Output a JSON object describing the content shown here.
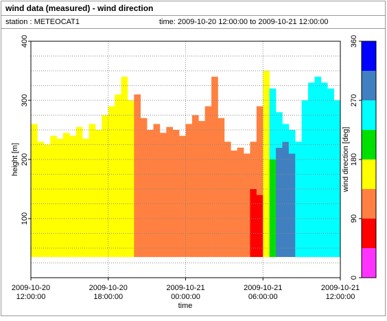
{
  "chart_data": {
    "type": "heatmap",
    "title": "wind data (measured) - wind direction",
    "station": "station : METEOCAT1",
    "period": "time: 2009-10-20 12:00:00 to 2009-10-21 12:00:00",
    "xlabel": "time",
    "ylabel": "height [m]",
    "xlim": [
      "2009-10-20 12:00:00",
      "2009-10-21 12:00:00"
    ],
    "xticks": [
      "2009-10-20 12:00:00",
      "2009-10-20 18:00:00",
      "2009-10-21 00:00:00",
      "2009-10-21 06:00:00",
      "2009-10-21 12:00:00"
    ],
    "ylim": [
      0,
      400
    ],
    "yticks": [
      100,
      200,
      300,
      400
    ],
    "yminorticks": [
      25,
      50,
      75,
      125,
      150,
      175,
      225,
      250,
      275,
      325,
      350,
      375
    ],
    "grid": true,
    "colorbar": {
      "label": "wind direction [deg]",
      "lim": [
        0,
        360
      ],
      "ticks": [
        0,
        90,
        180,
        270,
        360
      ],
      "colors": [
        "#ff33ff",
        "#ff0000",
        "#ff8040",
        "#ffff00",
        "#00e000",
        "#00ffff",
        "#4080c0",
        "#0000ff"
      ]
    },
    "columns": [
      {
        "time": "2009-10-20 12:00:00",
        "segments": [
          [
            35,
            260,
            160
          ]
        ]
      },
      {
        "time": "2009-10-20 12:30:00",
        "segments": [
          [
            35,
            230,
            160
          ]
        ]
      },
      {
        "time": "2009-10-20 13:00:00",
        "segments": [
          [
            35,
            225,
            160
          ]
        ]
      },
      {
        "time": "2009-10-20 13:30:00",
        "segments": [
          [
            35,
            240,
            160
          ]
        ]
      },
      {
        "time": "2009-10-20 14:00:00",
        "segments": [
          [
            35,
            235,
            160
          ]
        ]
      },
      {
        "time": "2009-10-20 14:30:00",
        "segments": [
          [
            35,
            245,
            160
          ]
        ]
      },
      {
        "time": "2009-10-20 15:00:00",
        "segments": [
          [
            35,
            240,
            160
          ]
        ]
      },
      {
        "time": "2009-10-20 15:30:00",
        "segments": [
          [
            35,
            255,
            160
          ]
        ]
      },
      {
        "time": "2009-10-20 16:00:00",
        "segments": [
          [
            35,
            235,
            160
          ]
        ]
      },
      {
        "time": "2009-10-20 16:30:00",
        "segments": [
          [
            35,
            260,
            160
          ]
        ]
      },
      {
        "time": "2009-10-20 17:00:00",
        "segments": [
          [
            35,
            250,
            160
          ]
        ]
      },
      {
        "time": "2009-10-20 17:30:00",
        "segments": [
          [
            35,
            275,
            160
          ]
        ]
      },
      {
        "time": "2009-10-20 18:00:00",
        "segments": [
          [
            35,
            290,
            160
          ]
        ]
      },
      {
        "time": "2009-10-20 18:30:00",
        "segments": [
          [
            35,
            310,
            160
          ]
        ]
      },
      {
        "time": "2009-10-20 19:00:00",
        "segments": [
          [
            35,
            340,
            160
          ]
        ]
      },
      {
        "time": "2009-10-20 19:30:00",
        "segments": [
          [
            35,
            300,
            160
          ]
        ]
      },
      {
        "time": "2009-10-20 20:00:00",
        "segments": [
          [
            35,
            310,
            120
          ]
        ]
      },
      {
        "time": "2009-10-20 20:30:00",
        "segments": [
          [
            35,
            270,
            120
          ]
        ]
      },
      {
        "time": "2009-10-20 21:00:00",
        "segments": [
          [
            35,
            250,
            120
          ]
        ]
      },
      {
        "time": "2009-10-20 21:30:00",
        "segments": [
          [
            35,
            260,
            120
          ]
        ]
      },
      {
        "time": "2009-10-20 22:00:00",
        "segments": [
          [
            35,
            245,
            120
          ]
        ]
      },
      {
        "time": "2009-10-20 22:30:00",
        "segments": [
          [
            35,
            255,
            120
          ]
        ]
      },
      {
        "time": "2009-10-20 23:00:00",
        "segments": [
          [
            35,
            250,
            120
          ]
        ]
      },
      {
        "time": "2009-10-20 23:30:00",
        "segments": [
          [
            35,
            240,
            120
          ]
        ]
      },
      {
        "time": "2009-10-21 00:00:00",
        "segments": [
          [
            35,
            260,
            120
          ]
        ]
      },
      {
        "time": "2009-10-21 00:30:00",
        "segments": [
          [
            35,
            275,
            120
          ]
        ]
      },
      {
        "time": "2009-10-21 01:00:00",
        "segments": [
          [
            35,
            265,
            120
          ]
        ]
      },
      {
        "time": "2009-10-21 01:30:00",
        "segments": [
          [
            35,
            290,
            120
          ]
        ]
      },
      {
        "time": "2009-10-21 02:00:00",
        "segments": [
          [
            35,
            340,
            120
          ]
        ]
      },
      {
        "time": "2009-10-21 02:30:00",
        "segments": [
          [
            35,
            270,
            120
          ]
        ]
      },
      {
        "time": "2009-10-21 03:00:00",
        "segments": [
          [
            35,
            230,
            120
          ]
        ]
      },
      {
        "time": "2009-10-21 03:30:00",
        "segments": [
          [
            35,
            215,
            120
          ]
        ]
      },
      {
        "time": "2009-10-21 04:00:00",
        "segments": [
          [
            35,
            220,
            120
          ]
        ]
      },
      {
        "time": "2009-10-21 04:30:00",
        "segments": [
          [
            35,
            210,
            120
          ]
        ]
      },
      {
        "time": "2009-10-21 05:00:00",
        "segments": [
          [
            35,
            150,
            70
          ],
          [
            150,
            230,
            120
          ]
        ]
      },
      {
        "time": "2009-10-21 05:30:00",
        "segments": [
          [
            35,
            140,
            70
          ],
          [
            140,
            290,
            120
          ]
        ]
      },
      {
        "time": "2009-10-21 06:00:00",
        "segments": [
          [
            35,
            350,
            160
          ]
        ]
      },
      {
        "time": "2009-10-21 06:30:00",
        "segments": [
          [
            35,
            200,
            200
          ],
          [
            200,
            320,
            250
          ]
        ]
      },
      {
        "time": "2009-10-21 07:00:00",
        "segments": [
          [
            35,
            220,
            290
          ],
          [
            220,
            280,
            250
          ]
        ]
      },
      {
        "time": "2009-10-21 07:30:00",
        "segments": [
          [
            35,
            230,
            290
          ],
          [
            230,
            260,
            250
          ]
        ]
      },
      {
        "time": "2009-10-21 08:00:00",
        "segments": [
          [
            35,
            210,
            290
          ],
          [
            210,
            250,
            250
          ]
        ]
      },
      {
        "time": "2009-10-21 08:30:00",
        "segments": [
          [
            35,
            230,
            250
          ]
        ]
      },
      {
        "time": "2009-10-21 09:00:00",
        "segments": [
          [
            35,
            300,
            250
          ]
        ]
      },
      {
        "time": "2009-10-21 09:30:00",
        "segments": [
          [
            35,
            330,
            250
          ]
        ]
      },
      {
        "time": "2009-10-21 10:00:00",
        "segments": [
          [
            35,
            340,
            250
          ]
        ]
      },
      {
        "time": "2009-10-21 10:30:00",
        "segments": [
          [
            35,
            330,
            250
          ]
        ]
      },
      {
        "time": "2009-10-21 11:00:00",
        "segments": [
          [
            35,
            320,
            250
          ]
        ]
      },
      {
        "time": "2009-10-21 11:30:00",
        "segments": [
          [
            35,
            300,
            250
          ]
        ]
      }
    ]
  }
}
